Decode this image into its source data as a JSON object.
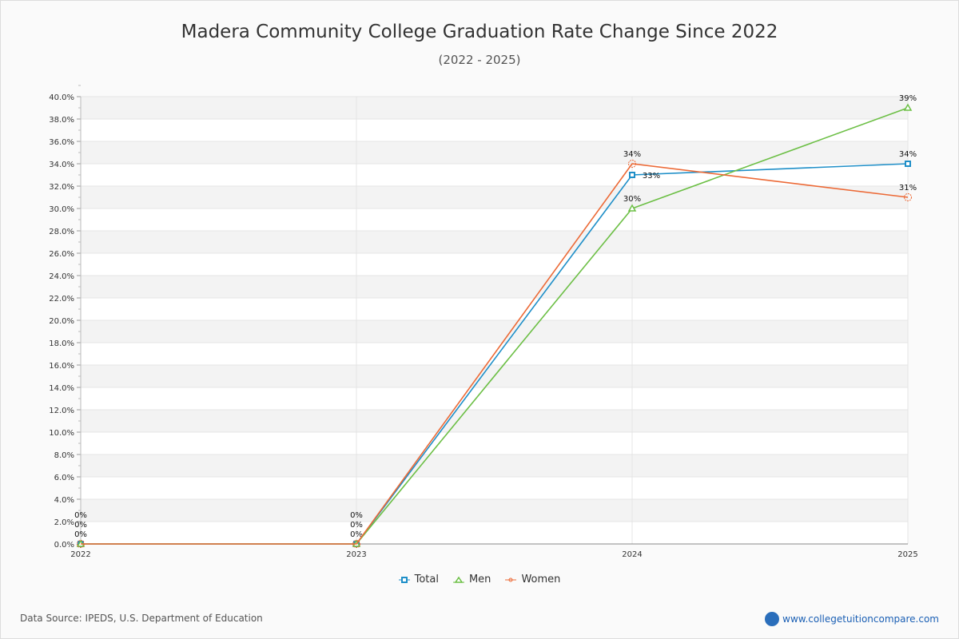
{
  "chart_data": {
    "type": "line",
    "title": "Madera Community College Graduation Rate Change Since 2022",
    "subtitle": "(2022 - 2025)",
    "x": [
      "2022",
      "2023",
      "2024",
      "2025"
    ],
    "ylim": [
      0,
      40
    ],
    "yticks": [
      "0.0%",
      "2.0%",
      "4.0%",
      "6.0%",
      "8.0%",
      "10.0%",
      "12.0%",
      "14.0%",
      "16.0%",
      "18.0%",
      "20.0%",
      "22.0%",
      "24.0%",
      "26.0%",
      "28.0%",
      "30.0%",
      "32.0%",
      "34.0%",
      "36.0%",
      "38.0%",
      "40.0%"
    ],
    "series": [
      {
        "name": "Total",
        "values": [
          0,
          0,
          33,
          34
        ],
        "labels": [
          "0%",
          "0%",
          "33%",
          "34%"
        ],
        "color": "#1f8fc8",
        "marker": "square"
      },
      {
        "name": "Men",
        "values": [
          0,
          0,
          30,
          39
        ],
        "labels": [
          "0%",
          "0%",
          "30%",
          "39%"
        ],
        "color": "#6cbf45",
        "marker": "triangle"
      },
      {
        "name": "Women",
        "values": [
          0,
          0,
          34,
          31
        ],
        "labels": [
          "0%",
          "0%",
          "34%",
          "31%"
        ],
        "color": "#ec6a37",
        "marker": "circle"
      }
    ],
    "legend": "bottom"
  },
  "footer": {
    "source": "Data Source: IPEDS, U.S. Department of Education",
    "brand": "www.collegetuitioncompare.com",
    "logo": "CTC"
  }
}
